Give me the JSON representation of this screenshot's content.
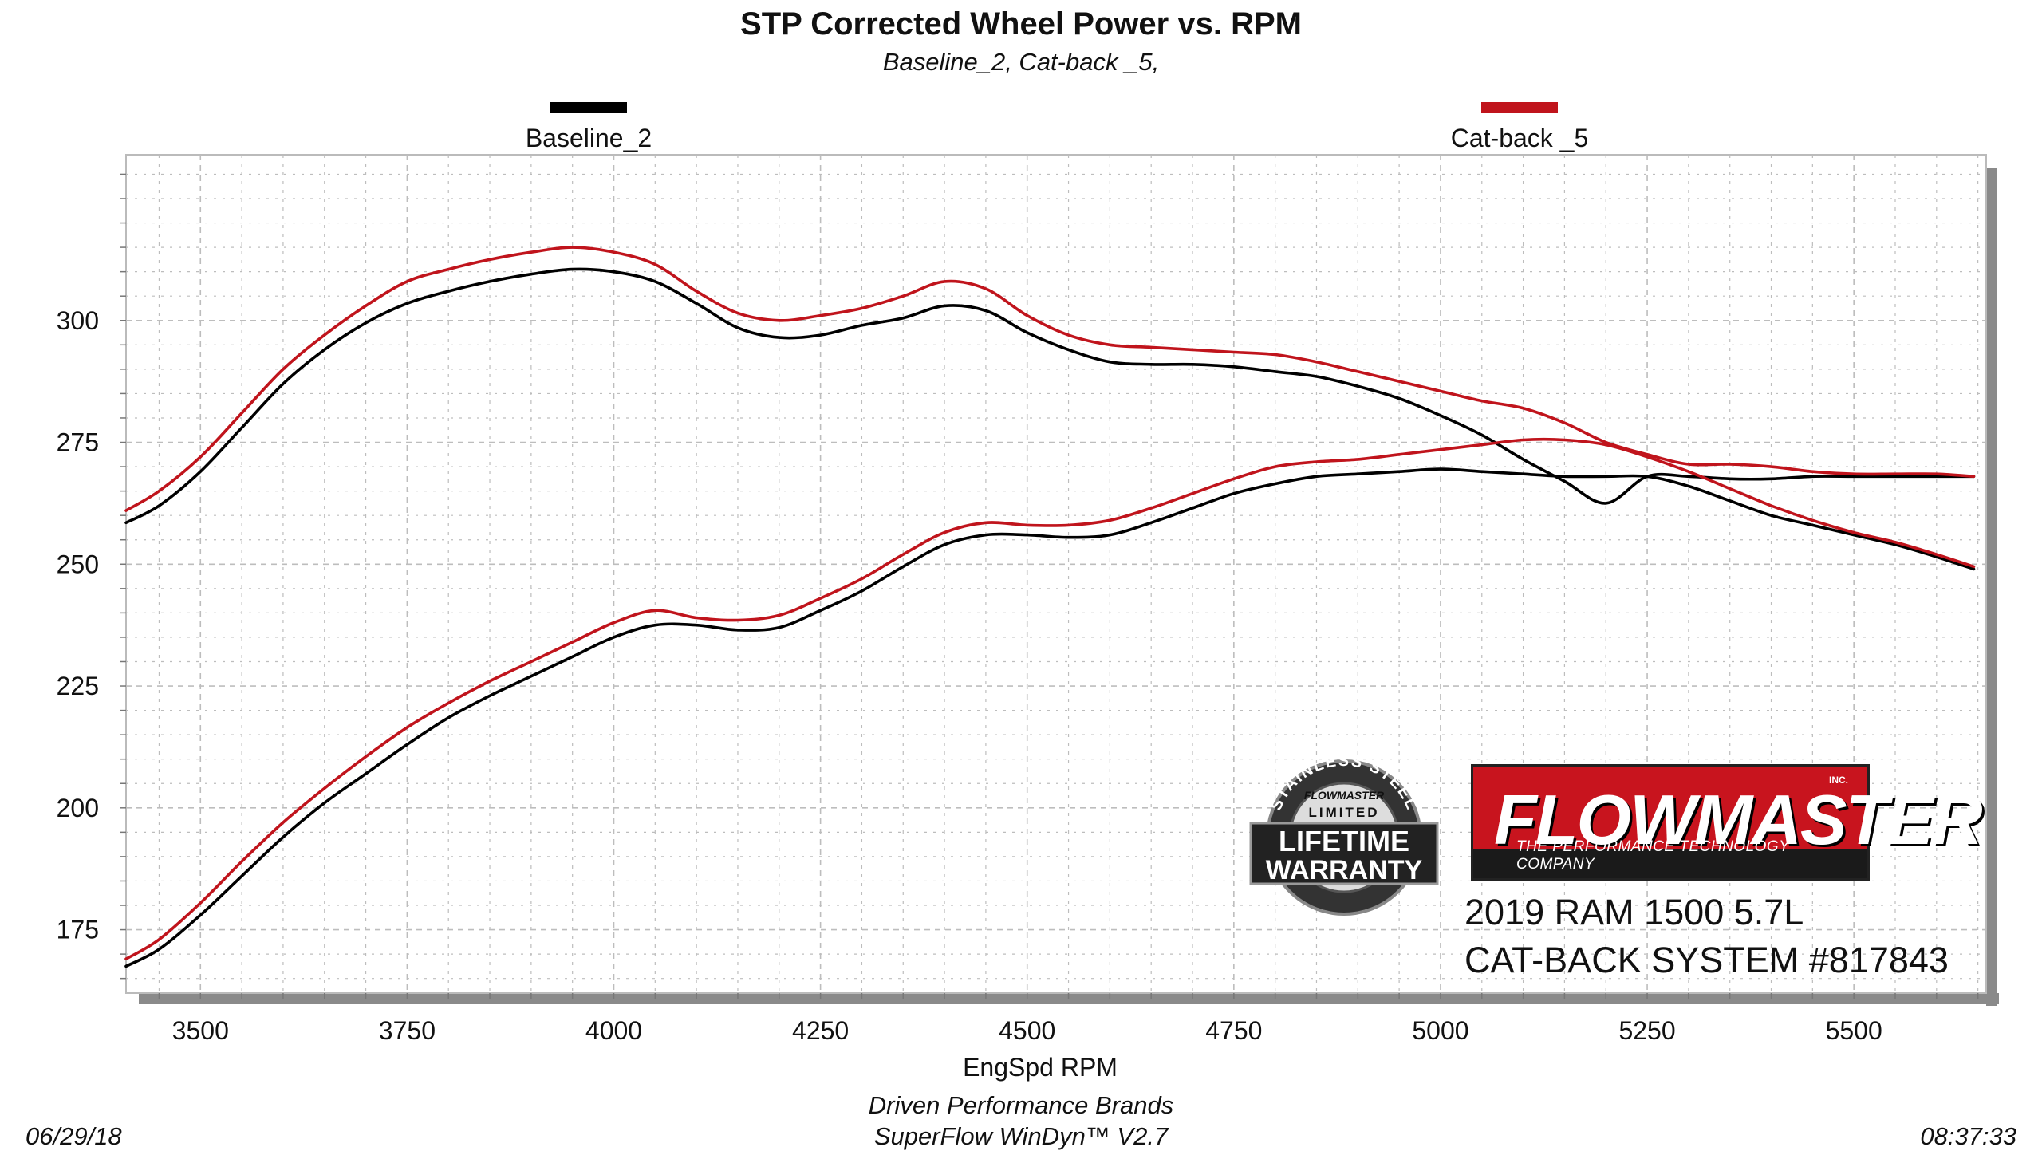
{
  "header": {
    "title": "STP Corrected Wheel Power vs. RPM",
    "subtitle": "Baseline_2, Cat-back _5,"
  },
  "footer": {
    "company": "Driven Performance Brands",
    "software": "SuperFlow WinDyn™ V2.7",
    "date": "06/29/18",
    "time": "08:37:33"
  },
  "overlay": {
    "vehicle": "2019 RAM 1500 5.7L",
    "system": "CAT-BACK SYSTEM #817843",
    "logo": {
      "brand": "FLOWMASTER",
      "inc": "INC.",
      "tagline": "THE PERFORMANCE TECHNOLOGY COMPANY"
    },
    "warranty": {
      "arc_text": "STAINLESS STEEL",
      "brand": "FLOWMASTER",
      "limited": "LIMITED",
      "line1": "LIFETIME",
      "line2": "WARRANTY"
    }
  },
  "colors": {
    "baseline": "#000000",
    "catback": "#c0141c",
    "plot_border": "#bbbbbb",
    "grid": "#bdbdbd",
    "shadow": "#8a8a8a"
  },
  "chart_data": {
    "type": "line",
    "title": "STP Corrected Wheel Power vs. RPM",
    "subtitle": "Baseline_2, Cat-back _5,",
    "xlabel": "EngSpd  RPM",
    "ylabel": "",
    "xlim": [
      3410,
      5660
    ],
    "ylim": [
      162,
      334
    ],
    "xticks": [
      3500,
      3750,
      4000,
      4250,
      4500,
      4750,
      5000,
      5250,
      5500
    ],
    "yticks": [
      175,
      200,
      225,
      250,
      275,
      300
    ],
    "grid": true,
    "legend_position": "top",
    "series": [
      {
        "name": "Baseline_2",
        "curve": "power",
        "x": [
          3410,
          3450,
          3500,
          3550,
          3600,
          3650,
          3700,
          3750,
          3800,
          3850,
          3900,
          3950,
          4000,
          4050,
          4100,
          4150,
          4200,
          4250,
          4300,
          4350,
          4400,
          4450,
          4500,
          4550,
          4600,
          4650,
          4700,
          4750,
          4800,
          4850,
          4900,
          4950,
          5000,
          5050,
          5100,
          5150,
          5200,
          5250,
          5300,
          5350,
          5400,
          5450,
          5500,
          5550,
          5600,
          5645
        ],
        "y": [
          258.5,
          262,
          269,
          278,
          287,
          294,
          299.5,
          303.5,
          306,
          308,
          309.5,
          310.5,
          310,
          308,
          303.5,
          298.5,
          296.5,
          297,
          299,
          300.5,
          303,
          302,
          297.5,
          294,
          291.5,
          291,
          291,
          290.5,
          289.5,
          288.5,
          286.5,
          284,
          280.5,
          276.5,
          271.5,
          267,
          262.5,
          268,
          268,
          267.5,
          267.5,
          268,
          268,
          268,
          268,
          268
        ]
      },
      {
        "name": "Cat-back _5",
        "curve": "power",
        "x": [
          3410,
          3450,
          3500,
          3550,
          3600,
          3650,
          3700,
          3750,
          3800,
          3850,
          3900,
          3950,
          4000,
          4050,
          4100,
          4150,
          4200,
          4250,
          4300,
          4350,
          4400,
          4450,
          4500,
          4550,
          4600,
          4650,
          4700,
          4750,
          4800,
          4850,
          4900,
          4950,
          5000,
          5050,
          5100,
          5150,
          5200,
          5250,
          5300,
          5350,
          5400,
          5450,
          5500,
          5550,
          5600,
          5645
        ],
        "y": [
          261,
          265,
          272,
          281,
          290,
          297,
          303,
          308,
          310.5,
          312.5,
          314,
          315,
          314,
          311.5,
          306,
          301.5,
          300,
          301,
          302.5,
          305,
          308,
          306.5,
          301,
          297,
          295,
          294.5,
          294,
          293.5,
          293,
          291.5,
          289.5,
          287.5,
          285.5,
          283.5,
          282,
          279,
          275,
          272.5,
          270.5,
          270.5,
          270,
          269,
          268.5,
          268.5,
          268.5,
          268
        ]
      },
      {
        "name": "Baseline_2",
        "curve": "torque",
        "x": [
          3410,
          3450,
          3500,
          3550,
          3600,
          3650,
          3700,
          3750,
          3800,
          3850,
          3900,
          3950,
          4000,
          4050,
          4100,
          4150,
          4200,
          4250,
          4300,
          4350,
          4400,
          4450,
          4500,
          4550,
          4600,
          4650,
          4700,
          4750,
          4800,
          4850,
          4900,
          4950,
          5000,
          5050,
          5100,
          5150,
          5200,
          5250,
          5300,
          5350,
          5400,
          5450,
          5500,
          5550,
          5600,
          5645
        ],
        "y": [
          167.5,
          171,
          178,
          186,
          194,
          201,
          207,
          213,
          218.5,
          223,
          227,
          231,
          235,
          237.5,
          237.5,
          236.5,
          237,
          240.5,
          244.5,
          249.5,
          254,
          256,
          256,
          255.5,
          256,
          258.5,
          261.5,
          264.5,
          266.5,
          268,
          268.5,
          269,
          269.5,
          269,
          268.5,
          268,
          268,
          268,
          266,
          263,
          260,
          258,
          256,
          254,
          251.5,
          249
        ]
      },
      {
        "name": "Cat-back _5",
        "curve": "torque",
        "x": [
          3410,
          3450,
          3500,
          3550,
          3600,
          3650,
          3700,
          3750,
          3800,
          3850,
          3900,
          3950,
          4000,
          4050,
          4100,
          4150,
          4200,
          4250,
          4300,
          4350,
          4400,
          4450,
          4500,
          4550,
          4600,
          4650,
          4700,
          4750,
          4800,
          4850,
          4900,
          4950,
          5000,
          5050,
          5100,
          5150,
          5200,
          5250,
          5300,
          5350,
          5400,
          5450,
          5500,
          5550,
          5600,
          5645
        ],
        "y": [
          169,
          173,
          180.5,
          189,
          197,
          204,
          210.5,
          216.5,
          221.5,
          226,
          230,
          234,
          238,
          240.5,
          239,
          238.5,
          239.5,
          243,
          247,
          252,
          256.5,
          258.5,
          258,
          258,
          259,
          261.5,
          264.5,
          267.5,
          270,
          271,
          271.5,
          272.5,
          273.5,
          274.5,
          275.5,
          275.5,
          274.5,
          272,
          269,
          265.5,
          262,
          259,
          256.5,
          254.5,
          252,
          249.5
        ]
      }
    ]
  }
}
